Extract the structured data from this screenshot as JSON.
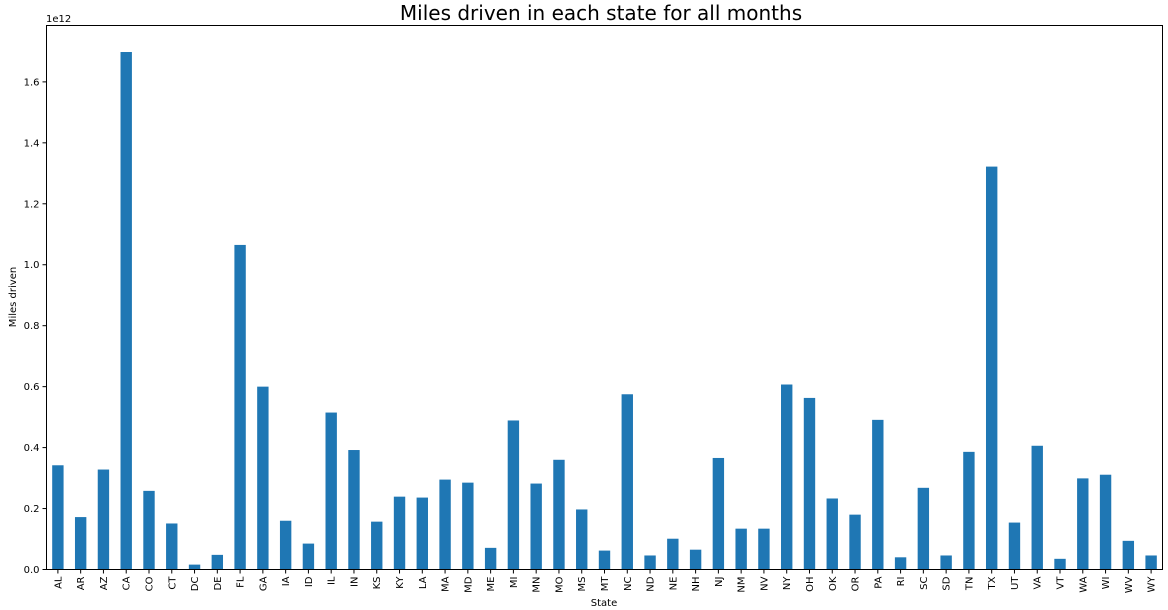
{
  "chart_data": {
    "type": "bar",
    "title": "Miles driven in each state for all months",
    "xlabel": "State",
    "ylabel": "Miles driven",
    "y_offset_label": "1e12",
    "y_scale": 1000000000000.0,
    "ylim": [
      0,
      1.785
    ],
    "yticks": [
      0.0,
      0.2,
      0.4,
      0.6,
      0.8,
      1.0,
      1.2,
      1.4,
      1.6
    ],
    "ytick_labels": [
      "0.0",
      "0.2",
      "0.4",
      "0.6",
      "0.8",
      "1.0",
      "1.2",
      "1.4",
      "1.6"
    ],
    "grid": false,
    "bar_color": "#1f77b4",
    "categories": [
      "AL",
      "AR",
      "AZ",
      "CA",
      "CO",
      "CT",
      "DC",
      "DE",
      "FL",
      "GA",
      "IA",
      "ID",
      "IL",
      "IN",
      "KS",
      "KY",
      "LA",
      "MA",
      "MD",
      "ME",
      "MI",
      "MN",
      "MO",
      "MS",
      "MT",
      "NC",
      "ND",
      "NE",
      "NH",
      "NJ",
      "NM",
      "NV",
      "NY",
      "OH",
      "OK",
      "OR",
      "PA",
      "RI",
      "SC",
      "SD",
      "TN",
      "TX",
      "UT",
      "VA",
      "VT",
      "WA",
      "WI",
      "WV",
      "WY"
    ],
    "values": [
      0.342,
      0.172,
      0.328,
      1.698,
      0.258,
      0.151,
      0.016,
      0.048,
      1.065,
      0.6,
      0.16,
      0.085,
      0.515,
      0.392,
      0.157,
      0.239,
      0.236,
      0.295,
      0.285,
      0.071,
      0.489,
      0.282,
      0.36,
      0.197,
      0.062,
      0.575,
      0.046,
      0.101,
      0.065,
      0.366,
      0.134,
      0.134,
      0.607,
      0.563,
      0.233,
      0.18,
      0.491,
      0.04,
      0.268,
      0.046,
      0.386,
      1.322,
      0.154,
      0.406,
      0.035,
      0.299,
      0.311,
      0.094,
      0.046
    ]
  }
}
